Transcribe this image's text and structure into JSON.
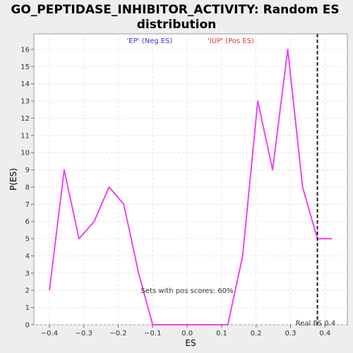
{
  "chart_data": {
    "type": "line",
    "title_lines": [
      "GO_PEPTIDASE_INHIBITOR_ACTIVITY: Random ES",
      "distribution"
    ],
    "xlabel": "ES",
    "ylabel": "P(ES)",
    "xlim": [
      -0.445,
      0.465
    ],
    "ylim": [
      0,
      16.9
    ],
    "x_ticks": [
      -0.4,
      -0.3,
      -0.2,
      -0.1,
      0.0,
      0.1,
      0.2,
      0.3,
      0.4
    ],
    "x_tick_labels": [
      "−0.4",
      "−0.3",
      "−0.2",
      "−0.1",
      "0.0",
      "0.1",
      "0.2",
      "0.3",
      "0.4"
    ],
    "y_ticks": [
      0,
      1,
      2,
      3,
      4,
      5,
      6,
      7,
      8,
      9,
      10,
      11,
      12,
      13,
      14,
      15,
      16
    ],
    "grid": true,
    "legend": [
      {
        "label": "'EP' (Neg ES)",
        "color": "#3333cc"
      },
      {
        "label": "'IUP' (Pos ES)",
        "color": "#dd3333"
      }
    ],
    "series": [
      {
        "color": "#ee44ee",
        "x": [
          -0.4,
          -0.357,
          -0.314,
          -0.27,
          -0.227,
          -0.184,
          -0.141,
          -0.1,
          -0.055,
          -0.012,
          0.03,
          0.075,
          0.118,
          0.161,
          0.205,
          0.248,
          0.292,
          0.335,
          0.378,
          0.421
        ],
        "y": [
          2,
          9,
          5,
          6,
          8,
          7,
          3,
          0,
          0,
          0,
          0,
          0,
          0,
          4,
          13,
          9,
          16,
          8,
          5,
          5
        ]
      }
    ],
    "real_es": {
      "x": 0.378,
      "label": "Real ES 0.4"
    },
    "annotation": "Sets with pos scores: 60%"
  }
}
